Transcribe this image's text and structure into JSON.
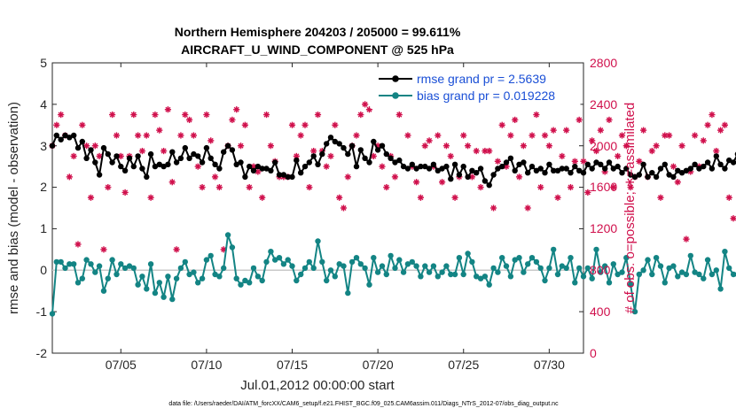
{
  "chart_data": {
    "type": "line",
    "title_line1": "Northern Hemisphere 204203 / 205000 = 99.611%",
    "title_line2": "AIRCRAFT_U_WIND_COMPONENT @ 525 hPa",
    "xlabel": "Jul.01,2012 00:00:00 start",
    "ylabel_left": "rmse and bias (model - observation)",
    "ylabel_right": "# of obs: o=possible; ∗=assimilated",
    "footer": "data file: /Users/raeder/DAI/ATM_forcXX/CAM6_setup/f.e21.FHIST_BGC.f09_025.CAM6assim.011/Diags_NTrS_2012-07/obs_diag_output.nc",
    "x_range_days": [
      1,
      32
    ],
    "x_ticks": [
      {
        "day": 5,
        "label": "07/05"
      },
      {
        "day": 10,
        "label": "07/10"
      },
      {
        "day": 15,
        "label": "07/15"
      },
      {
        "day": 20,
        "label": "07/20"
      },
      {
        "day": 25,
        "label": "07/25"
      },
      {
        "day": 30,
        "label": "07/30"
      }
    ],
    "ylim_left": [
      -2,
      5
    ],
    "yticks_left": [
      "5",
      "4",
      "3",
      "2",
      "1",
      "0",
      "-1",
      "-2"
    ],
    "ylim_right": [
      0,
      2800
    ],
    "yticks_right": [
      "2800",
      "2400",
      "2000",
      "1600",
      "1200",
      "800",
      "400",
      "0"
    ],
    "colors": {
      "rmse": "#000000",
      "bias": "#138484",
      "obs": "#d0104c",
      "zero": "#c8c8c8"
    },
    "x_step_days": 0.25,
    "series": [
      {
        "name": "rmse grand pr = 2.5639",
        "values": [
          3.0,
          3.25,
          3.15,
          3.25,
          3.2,
          3.25,
          2.95,
          3.1,
          2.7,
          2.9,
          2.6,
          2.3,
          2.95,
          2.8,
          2.6,
          2.75,
          2.5,
          2.4,
          2.7,
          2.5,
          2.75,
          2.45,
          2.25,
          2.8,
          2.5,
          2.55,
          2.5,
          2.55,
          2.85,
          2.6,
          2.7,
          2.95,
          2.7,
          2.8,
          2.75,
          2.6,
          2.95,
          2.7,
          2.55,
          2.45,
          2.85,
          3.0,
          2.9,
          2.55,
          2.6,
          2.25,
          2.5,
          2.4,
          2.5,
          2.45,
          2.45,
          2.4,
          2.6,
          2.3,
          2.3,
          2.25,
          2.25,
          2.65,
          2.35,
          2.5,
          2.6,
          2.75,
          2.55,
          2.8,
          3.05,
          3.2,
          3.1,
          3.05,
          2.95,
          2.8,
          3.0,
          2.5,
          2.9,
          2.7,
          2.6,
          3.1,
          2.9,
          3.0,
          2.8,
          2.7,
          2.6,
          2.65,
          2.5,
          2.45,
          2.55,
          2.45,
          2.5,
          2.5,
          2.45,
          2.55,
          2.4,
          2.45,
          2.5,
          2.2,
          2.55,
          2.3,
          2.5,
          2.25,
          2.4,
          2.35,
          2.45,
          2.15,
          2.05,
          2.3,
          2.45,
          2.5,
          2.6,
          2.7,
          2.4,
          2.55,
          2.6,
          2.35,
          2.5,
          2.4,
          2.45,
          2.35,
          2.55,
          2.4,
          2.4,
          2.45,
          2.45,
          2.35,
          2.5,
          2.4,
          2.35,
          2.55,
          2.45,
          2.6,
          2.55,
          2.45,
          2.6,
          2.45,
          2.5,
          2.35,
          2.45,
          2.3,
          2.25,
          2.3,
          2.55,
          2.25,
          2.35,
          2.25,
          2.45,
          2.55,
          2.3,
          2.25,
          2.4,
          2.35,
          2.4,
          2.45,
          2.55,
          2.45,
          2.5,
          2.6,
          2.45,
          2.75,
          2.55,
          2.45,
          2.65,
          2.6,
          2.8
        ]
      },
      {
        "name": "bias grand pr = 0.019228",
        "values": [
          -1.05,
          0.2,
          0.2,
          0.05,
          0.15,
          0.15,
          -0.3,
          -0.2,
          0.25,
          0.15,
          -0.05,
          0.1,
          -0.5,
          -0.2,
          0.25,
          -0.1,
          0.15,
          0.05,
          0.1,
          0.05,
          -0.35,
          -0.15,
          -0.45,
          0.15,
          -0.55,
          -0.3,
          -0.65,
          -0.15,
          -0.7,
          -0.2,
          0.05,
          0.2,
          -0.1,
          -0.05,
          -0.3,
          -0.2,
          0.25,
          0.35,
          -0.1,
          -0.15,
          0.05,
          0.85,
          0.55,
          -0.2,
          -0.35,
          -0.25,
          -0.3,
          0.05,
          -0.15,
          -0.25,
          0.2,
          0.45,
          0.25,
          0.3,
          0.15,
          0.25,
          0.1,
          -0.25,
          -0.1,
          0.05,
          0.2,
          0.05,
          0.7,
          0.2,
          -0.25,
          0.0,
          -0.15,
          0.15,
          0.1,
          -0.55,
          0.2,
          0.3,
          0.15,
          0.05,
          -0.35,
          0.3,
          -0.05,
          0.1,
          -0.1,
          0.35,
          0.05,
          0.25,
          -0.05,
          0.15,
          0.2,
          0.1,
          -0.15,
          0.1,
          -0.05,
          0.1,
          -0.15,
          -0.05,
          0.1,
          -0.1,
          -0.1,
          0.3,
          -0.1,
          0.4,
          0.2,
          -0.15,
          -0.2,
          -0.15,
          -0.35,
          0.05,
          -0.05,
          0.3,
          0.1,
          -0.15,
          0.25,
          0.3,
          -0.05,
          0.15,
          0.3,
          0.2,
          0.05,
          -0.25,
          0.05,
          0.5,
          -0.1,
          0.1,
          0.05,
          0.3,
          -0.3,
          0.05,
          -0.15,
          0.05,
          -0.2,
          0.5,
          -0.05,
          0.1,
          -0.3,
          0.15,
          -0.1,
          -0.05,
          0.3,
          -0.35,
          -1.0,
          -0.1,
          0.0,
          0.25,
          -0.1,
          0.3,
          0.1,
          -0.3,
          0.05,
          0.1,
          -0.15,
          -0.05,
          -0.1,
          0.35,
          -0.05,
          -0.1,
          -0.2,
          0.25,
          -0.1,
          0.0,
          -0.45,
          0.45,
          0.05,
          -0.1,
          -0.1,
          0.3
        ]
      }
    ],
    "obs_counts_assimilated": [
      2000,
      2200,
      2300,
      2100,
      1700,
      1900,
      1050,
      2200,
      2000,
      1500,
      2000,
      1900,
      1000,
      1600,
      2300,
      2100,
      1900,
      1550,
      1900,
      2300,
      2100,
      1950,
      2100,
      1500,
      2300,
      2150,
      1950,
      2350,
      1650,
      1000,
      2100,
      2300,
      2250,
      2100,
      1800,
      1600,
      2300,
      2050,
      1700,
      1600,
      1000,
      2000,
      2250,
      2350,
      2000,
      2200,
      1600,
      1800,
      1750,
      1500,
      2300,
      2000,
      1850,
      1700,
      1700,
      1700,
      2200,
      1900,
      2100,
      2200,
      1600,
      1950,
      2300,
      1950,
      1800,
      1900,
      2200,
      1500,
      1400,
      1700,
      2000,
      2100,
      2300,
      2400,
      2350,
      1900,
      2000,
      1800,
      1600,
      1900,
      1700,
      2300,
      2450,
      2100,
      1800,
      1650,
      1500,
      2000,
      2050,
      1800,
      2100,
      1650,
      2000,
      1900,
      1500,
      1700,
      2100,
      2000,
      1700,
      1950,
      1600,
      1950,
      1950,
      1400,
      1850,
      2200,
      1800,
      2100,
      2250,
      1700,
      2000,
      1400,
      2100,
      2300,
      1600,
      2100,
      2000,
      2150,
      1500,
      1900,
      2150,
      1600,
      1850,
      2250,
      1850,
      1550,
      2050,
      1950,
      2150,
      1750,
      2250,
      1600,
      1900,
      2100,
      2000,
      1600,
      1700,
      1850,
      2150,
      1700,
      1950,
      2000,
      1500,
      2100,
      2100,
      1800,
      1650,
      2000,
      1100,
      1750,
      2100,
      1800,
      2050,
      2200,
      2300,
      1950,
      2150,
      2200,
      1500,
      1300
    ]
  }
}
